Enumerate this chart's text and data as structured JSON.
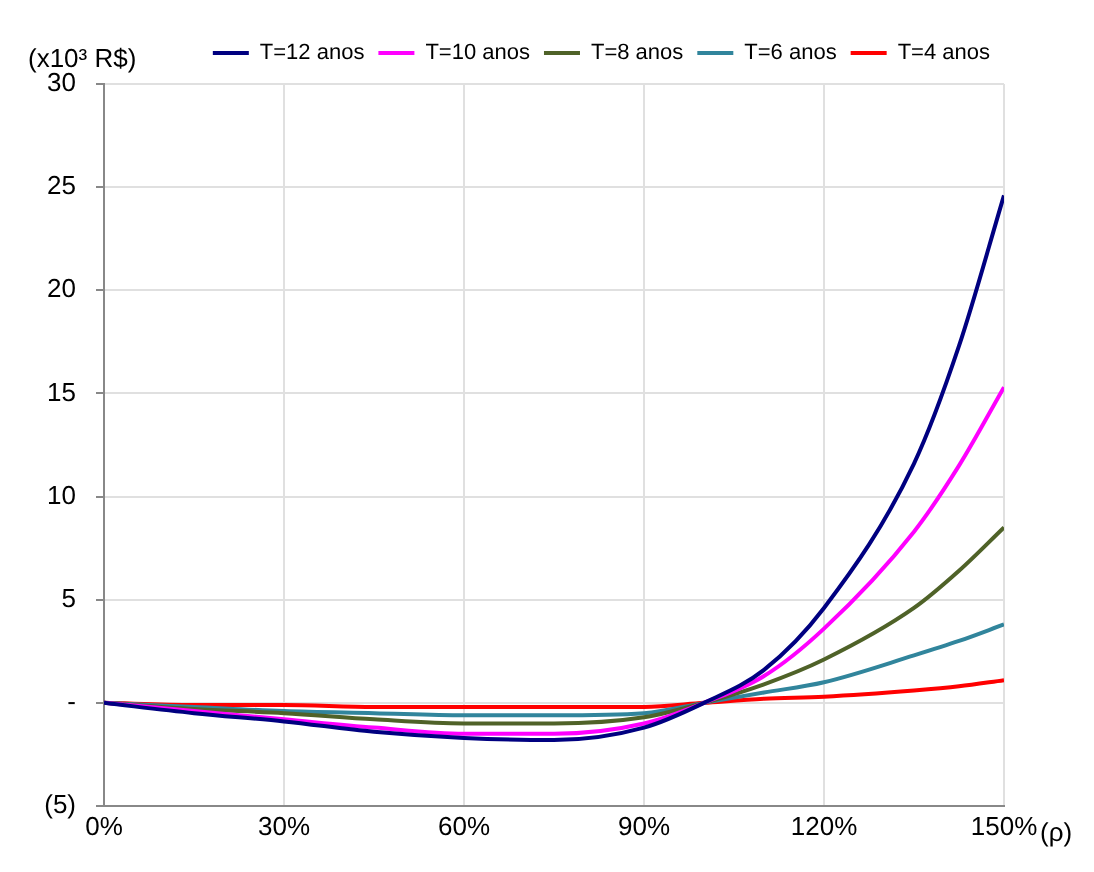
{
  "chart_data": {
    "type": "line",
    "ylabel": "(x10³ R$)",
    "xlabel": "(ρ)",
    "x": [
      0,
      15,
      30,
      45,
      60,
      75,
      90,
      100,
      110,
      120,
      135,
      142.5,
      150
    ],
    "series": [
      {
        "name": "T=12 anos",
        "color": "#000080",
        "values": [
          0,
          -0.5,
          -0.9,
          -1.4,
          -1.7,
          -1.8,
          -1.2,
          0,
          1.6,
          4.6,
          11.6,
          17.3,
          24.6
        ]
      },
      {
        "name": "T=10 anos",
        "color": "#ff00ff",
        "values": [
          0,
          -0.4,
          -0.8,
          -1.2,
          -1.5,
          -1.5,
          -1.0,
          0,
          1.3,
          3.6,
          8.3,
          11.5,
          15.3
        ]
      },
      {
        "name": "T=8 anos",
        "color": "#4f6228",
        "values": [
          0,
          -0.3,
          -0.5,
          -0.8,
          -1.0,
          -1.0,
          -0.7,
          0,
          0.9,
          2.1,
          4.6,
          6.4,
          8.5
        ]
      },
      {
        "name": "T=6 anos",
        "color": "#31859c",
        "values": [
          0,
          -0.2,
          -0.4,
          -0.5,
          -0.6,
          -0.6,
          -0.5,
          0,
          0.5,
          1.0,
          2.3,
          3.0,
          3.8
        ]
      },
      {
        "name": "T=4 anos",
        "color": "#ff0000",
        "values": [
          0,
          -0.1,
          -0.1,
          -0.2,
          -0.2,
          -0.2,
          -0.2,
          0,
          0.2,
          0.3,
          0.6,
          0.8,
          1.1
        ]
      }
    ],
    "xlim": [
      0,
      150
    ],
    "xticks": [
      {
        "value": 0,
        "label": "0%"
      },
      {
        "value": 30,
        "label": "30%"
      },
      {
        "value": 60,
        "label": "60%"
      },
      {
        "value": 90,
        "label": "90%"
      },
      {
        "value": 120,
        "label": "120%"
      },
      {
        "value": 150,
        "label": "150%"
      }
    ],
    "ylim": [
      -5,
      30
    ],
    "yticks": [
      {
        "value": -5,
        "label": "(5)"
      },
      {
        "value": 0,
        "label": "-"
      },
      5,
      10,
      15,
      20,
      25,
      30
    ],
    "grid": true,
    "legend": "top",
    "marker": "none",
    "line_style": "solid"
  }
}
